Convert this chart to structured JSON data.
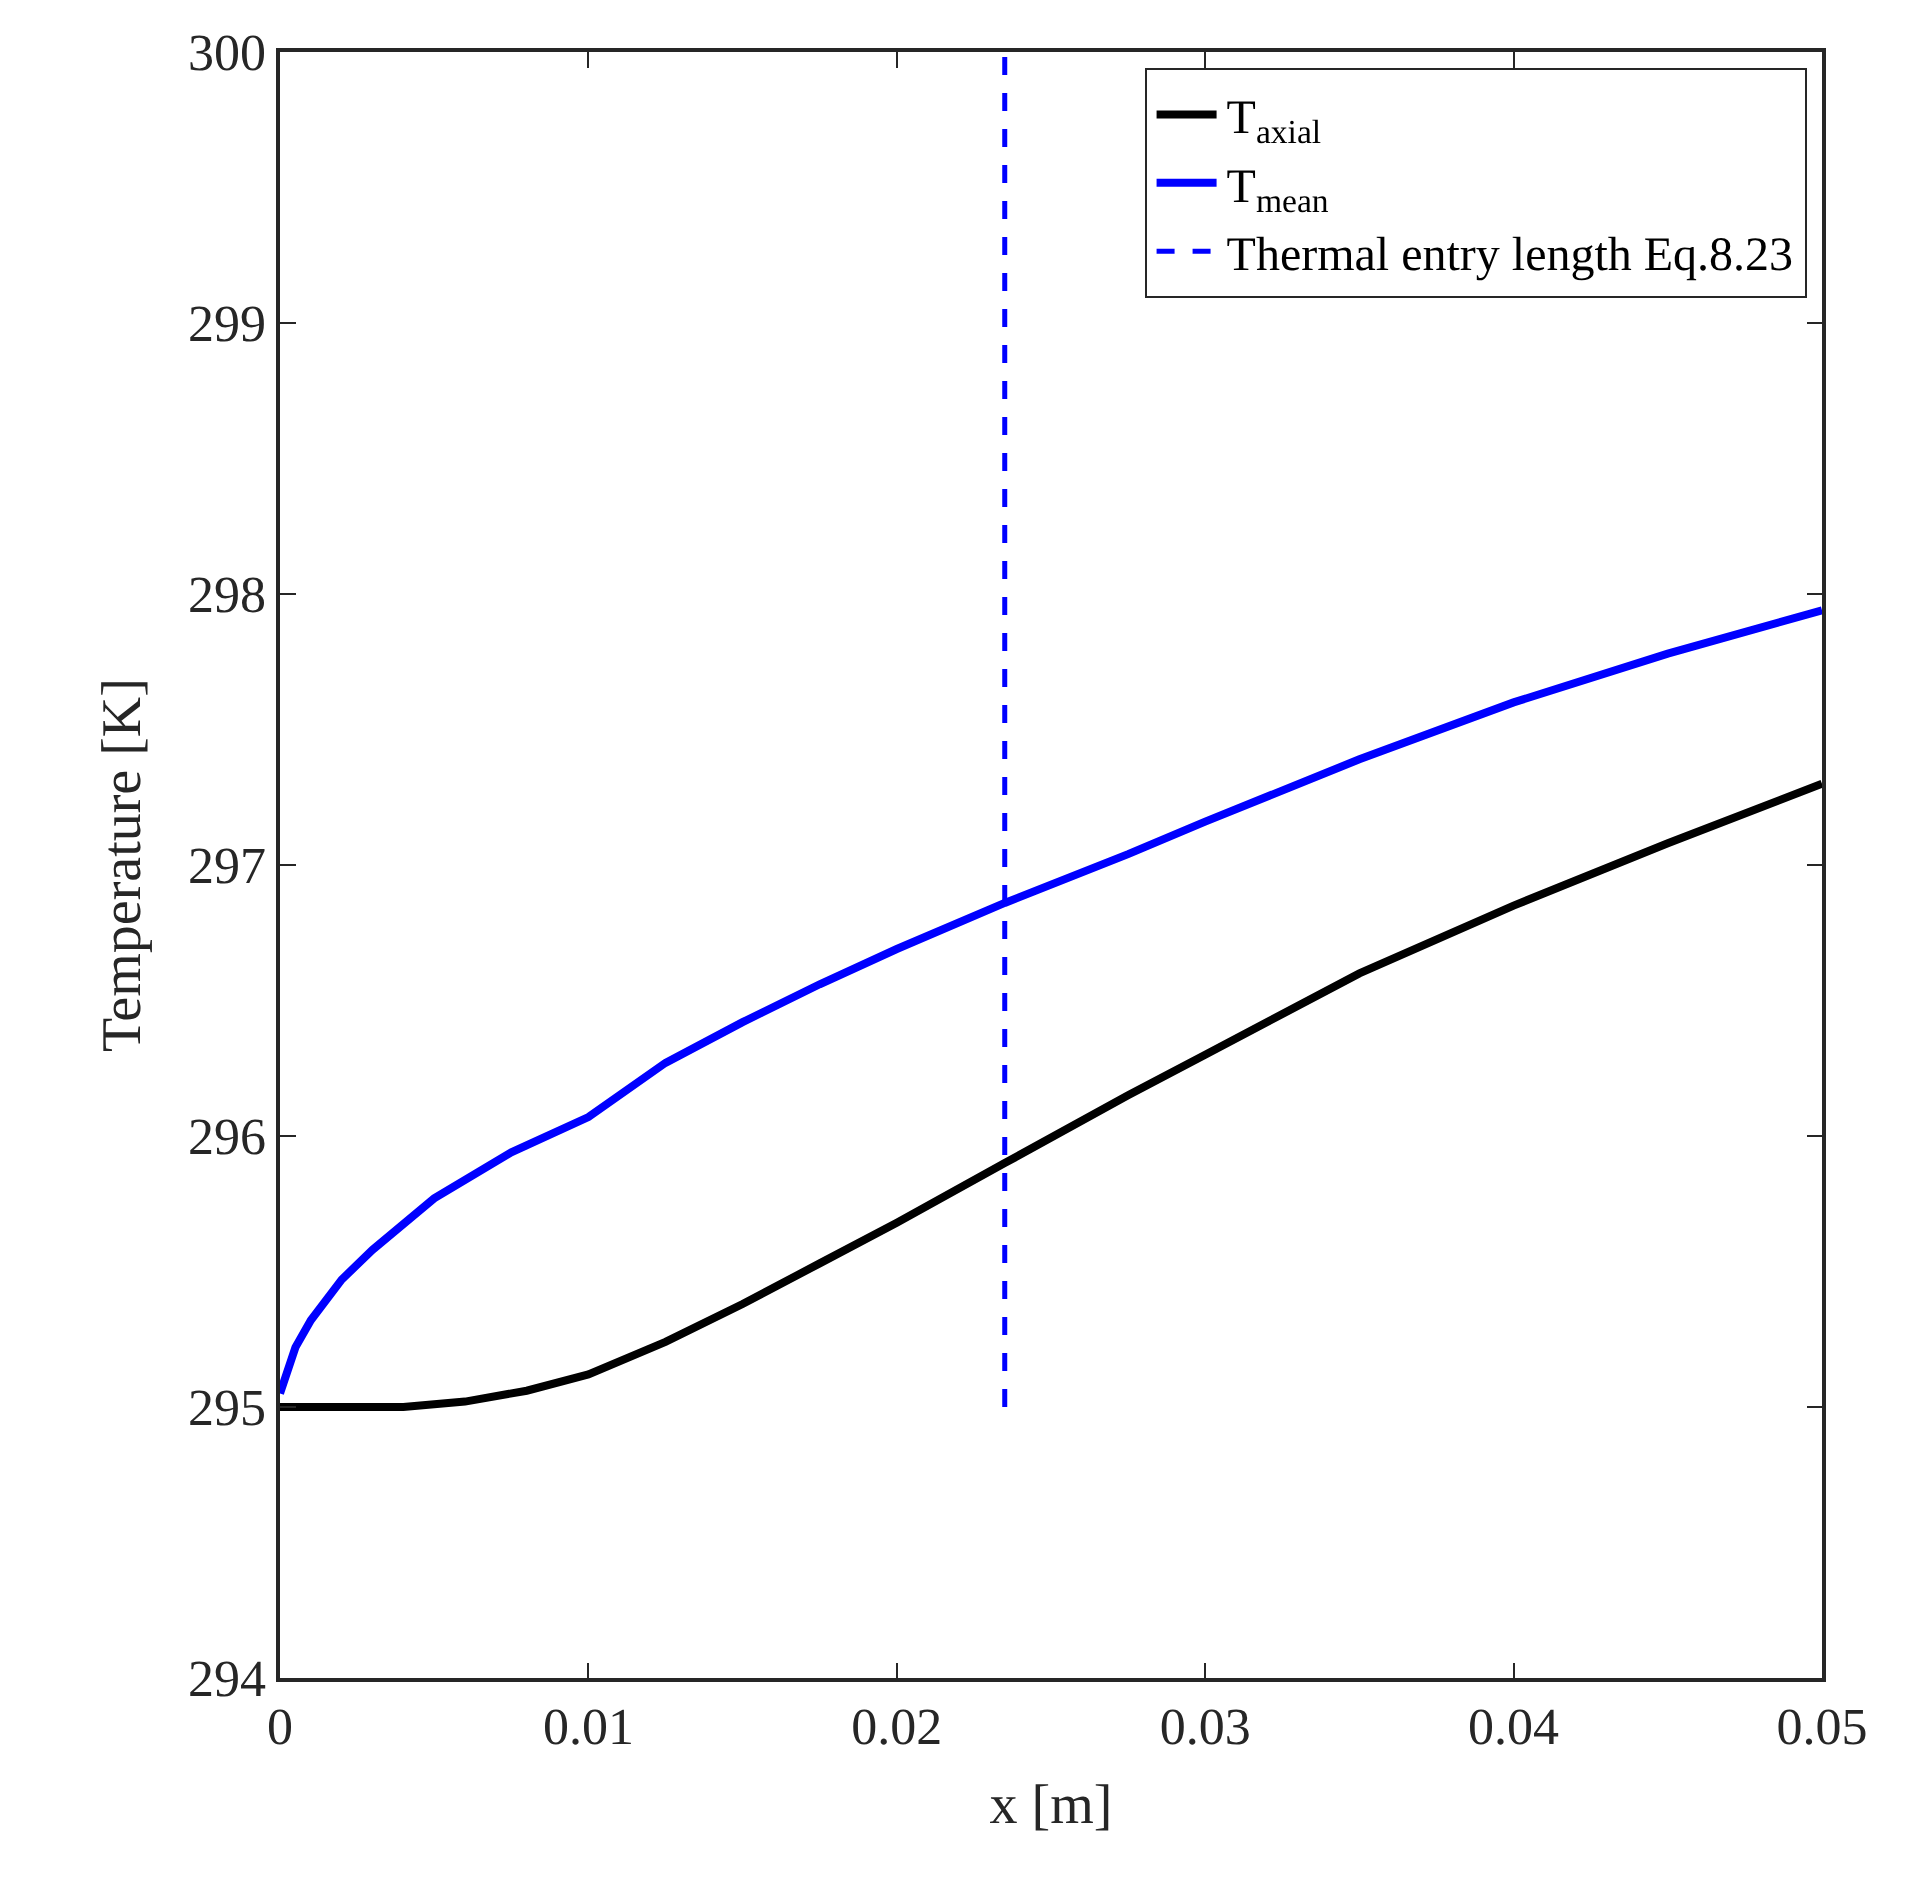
{
  "chart_data": {
    "type": "line",
    "xlabel": "x [m]",
    "ylabel": "Temperature [K]",
    "xlim": [
      0,
      0.05
    ],
    "xticks": [
      0,
      0.01,
      0.02,
      0.03,
      0.04,
      0.05
    ],
    "ylim": [
      294,
      300
    ],
    "yticks": [
      294,
      295,
      296,
      297,
      298,
      299,
      300
    ],
    "legend": "top right",
    "marker": "none",
    "series": [
      {
        "name": "T$_{axial}$",
        "color": "#000000",
        "line_style": "solid",
        "x": [
          0,
          0.002,
          0.004,
          0.006,
          0.008,
          0.01,
          0.0125,
          0.015,
          0.0175,
          0.02,
          0.0235,
          0.0275,
          0.03,
          0.035,
          0.04,
          0.045,
          0.05
        ],
        "values": [
          295.0,
          295.0,
          295.0,
          295.02,
          295.06,
          295.12,
          295.24,
          295.38,
          295.53,
          295.68,
          295.9,
          296.15,
          296.3,
          296.6,
          296.85,
          297.08,
          297.3
        ]
      },
      {
        "name": "T$_{mean}$",
        "color": "#0000ff",
        "line_style": "solid",
        "x": [
          0,
          0.0005,
          0.001,
          0.002,
          0.003,
          0.005,
          0.0075,
          0.01,
          0.0125,
          0.015,
          0.0175,
          0.02,
          0.0235,
          0.0275,
          0.03,
          0.035,
          0.04,
          0.045,
          0.05
        ],
        "values": [
          295.05,
          295.22,
          295.32,
          295.47,
          295.58,
          295.77,
          295.94,
          296.07,
          296.27,
          296.42,
          296.56,
          296.69,
          296.86,
          297.04,
          297.16,
          297.39,
          297.6,
          297.78,
          297.94
        ]
      },
      {
        "name": "Thermal entry length Eq.8.23",
        "color": "#0000ff",
        "line_style": "dashed",
        "x": [
          0.0235,
          0.0235
        ],
        "values": [
          295,
          300
        ]
      }
    ]
  }
}
